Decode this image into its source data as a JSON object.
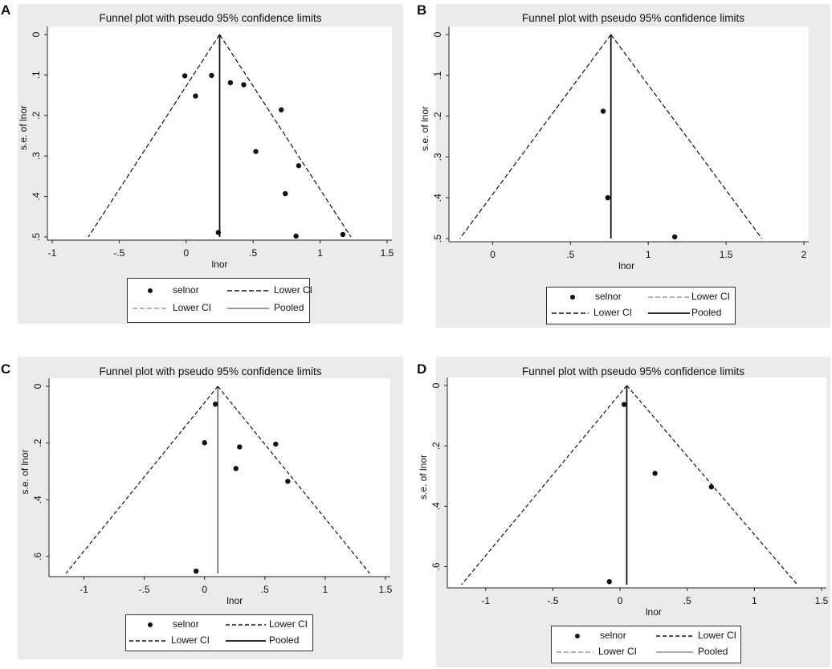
{
  "panels": [
    {
      "letter": "A",
      "title": "Funnel plot with pseudo 95% confidence limits",
      "legend": [
        "selnor",
        "Lower CI",
        "Lower CI",
        "Pooled"
      ],
      "chart_data": {
        "type": "scatter",
        "title": "Funnel plot with pseudo 95% confidence limits",
        "xlabel": "lnor",
        "ylabel": "s.e. of lnor",
        "xlim": [
          -1,
          1.5
        ],
        "ylim": [
          0,
          0.5
        ],
        "y_reversed": true,
        "xticks": [
          "-1",
          "-.5",
          "0",
          ".5",
          "1",
          "1.5"
        ],
        "yticks": [
          "0",
          ".1",
          ".2",
          ".3",
          ".4",
          ".5"
        ],
        "pooled": 0.25,
        "funnel_bottom": [
          -0.73,
          1.23
        ],
        "pooled_style": "thick",
        "funnel_style": "dash-long",
        "points": [
          [
            -0.01,
            0.102
          ],
          [
            0.07,
            0.152
          ],
          [
            0.19,
            0.101
          ],
          [
            0.33,
            0.119
          ],
          [
            0.43,
            0.124
          ],
          [
            0.71,
            0.186
          ],
          [
            0.52,
            0.289
          ],
          [
            0.84,
            0.324
          ],
          [
            0.74,
            0.393
          ],
          [
            0.24,
            0.489
          ],
          [
            0.82,
            0.498
          ],
          [
            1.17,
            0.494
          ]
        ],
        "series": [
          {
            "name": "selnor"
          },
          {
            "name": "Lower CI"
          },
          {
            "name": "Lower CI"
          },
          {
            "name": "Pooled"
          }
        ]
      }
    },
    {
      "letter": "B",
      "title": "Funnel plot with pseudo 95% confidence limits",
      "legend": [
        "selnor",
        "Lower CI",
        "Lower CI",
        "Pooled"
      ],
      "chart_data": {
        "type": "scatter",
        "title": "Funnel plot with pseudo 95% confidence limits",
        "xlabel": "lnor",
        "ylabel": "s.e. of lnor",
        "xlim": [
          -0.25,
          2
        ],
        "ylim": [
          0,
          0.5
        ],
        "y_reversed": true,
        "xticks": [
          "0",
          ".5",
          "1",
          "1.5",
          "2"
        ],
        "xtick_values": [
          0,
          0.5,
          1,
          1.5,
          2
        ],
        "yticks": [
          "0",
          ".1",
          ".2",
          ".3",
          ".4",
          ".5"
        ],
        "pooled": 0.76,
        "funnel_bottom": [
          -0.21,
          1.73
        ],
        "pooled_style": "thick",
        "funnel_style": "dash-long",
        "points": [
          [
            0.71,
            0.188
          ],
          [
            0.74,
            0.4
          ],
          [
            1.17,
            0.496
          ]
        ],
        "series": [
          {
            "name": "selnor"
          },
          {
            "name": "Lower CI"
          },
          {
            "name": "Lower CI"
          },
          {
            "name": "Pooled"
          }
        ]
      }
    },
    {
      "letter": "C",
      "title": "Funnel plot with pseudo 95% confidence limits",
      "legend": [
        "selnor",
        "Lower CI",
        "Lower CI",
        "Pooled"
      ],
      "chart_data": {
        "type": "scatter",
        "title": "Funnel plot with pseudo 95% confidence limits",
        "xlabel": "lnor",
        "ylabel": "s.e. of lnor",
        "xlim": [
          -1.25,
          1.5
        ],
        "ylim": [
          0,
          0.66
        ],
        "y_reversed": true,
        "xticks": [
          "-1",
          "-.5",
          "0",
          ".5",
          "1",
          "1.5"
        ],
        "xtick_values": [
          -1,
          -0.5,
          0,
          0.5,
          1,
          1.5
        ],
        "yticks": [
          "0",
          ".2",
          ".4",
          ".6"
        ],
        "ytick_values": [
          0,
          0.2,
          0.4,
          0.6
        ],
        "pooled": 0.11,
        "funnel_bottom": [
          -1.15,
          1.37
        ],
        "pooled_style": "thin",
        "funnel_style": "dash-short",
        "points": [
          [
            0.09,
            0.063
          ],
          [
            0.0,
            0.199
          ],
          [
            0.29,
            0.214
          ],
          [
            0.59,
            0.204
          ],
          [
            0.26,
            0.29
          ],
          [
            0.69,
            0.335
          ],
          [
            -0.07,
            0.652
          ]
        ],
        "series": [
          {
            "name": "selnor"
          },
          {
            "name": "Lower CI"
          },
          {
            "name": "Lower CI"
          },
          {
            "name": "Pooled"
          }
        ]
      }
    },
    {
      "letter": "D",
      "title": "Funnel plot with pseudo 95% confidence limits",
      "legend": [
        "selnor",
        "Lower CI",
        "Lower CI",
        "Pooled"
      ],
      "chart_data": {
        "type": "scatter",
        "title": "Funnel plot with pseudo 95% confidence limits",
        "xlabel": "lnor",
        "ylabel": "s.e. of lnor",
        "xlim": [
          -1.25,
          1.5
        ],
        "ylim": [
          0,
          0.66
        ],
        "y_reversed": true,
        "xticks": [
          "-1",
          "-.5",
          "0",
          ".5",
          "1",
          "1.5"
        ],
        "xtick_values": [
          -1,
          -0.5,
          0,
          0.5,
          1,
          1.5
        ],
        "yticks": [
          "0",
          ".2",
          ".4",
          ".6"
        ],
        "ytick_values": [
          0,
          0.2,
          0.4,
          0.6
        ],
        "pooled": 0.05,
        "funnel_bottom": [
          -1.18,
          1.32
        ],
        "pooled_style": "thick",
        "funnel_style": "dash-short",
        "points": [
          [
            0.03,
            0.063
          ],
          [
            0.26,
            0.291
          ],
          [
            0.68,
            0.336
          ],
          [
            -0.08,
            0.65
          ]
        ],
        "series": [
          {
            "name": "selnor"
          },
          {
            "name": "Lower CI"
          },
          {
            "name": "Lower CI"
          },
          {
            "name": "Pooled"
          }
        ]
      }
    }
  ]
}
